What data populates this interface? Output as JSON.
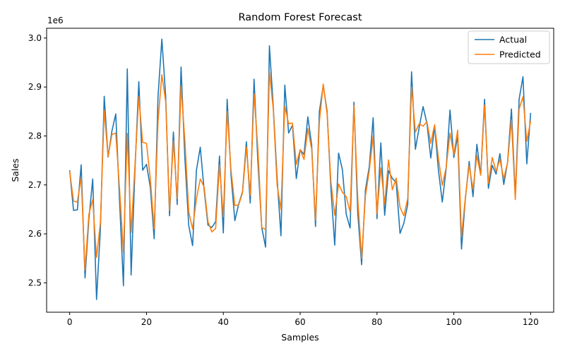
{
  "chart_data": {
    "type": "line",
    "title": "Random Forest Forecast",
    "xlabel": "Samples",
    "ylabel": "Sales",
    "y_offset_label": "1e6",
    "xlim": [
      -6,
      126
    ],
    "ylim": [
      2.44,
      3.02
    ],
    "x_ticks": [
      0,
      20,
      40,
      60,
      80,
      100,
      120
    ],
    "y_ticks": [
      2.5,
      2.6,
      2.7,
      2.8,
      2.9,
      3.0
    ],
    "y_tick_labels": [
      "2.5",
      "2.6",
      "2.7",
      "2.8",
      "2.9",
      "3.0"
    ],
    "grid": false,
    "legend_position": "top-right",
    "x": [
      0,
      1,
      2,
      3,
      4,
      5,
      6,
      7,
      8,
      9,
      10,
      11,
      12,
      13,
      14,
      15,
      16,
      17,
      18,
      19,
      20,
      21,
      22,
      23,
      24,
      25,
      26,
      27,
      28,
      29,
      30,
      31,
      32,
      33,
      34,
      35,
      36,
      37,
      38,
      39,
      40,
      41,
      42,
      43,
      44,
      45,
      46,
      47,
      48,
      49,
      50,
      51,
      52,
      53,
      54,
      55,
      56,
      57,
      58,
      59,
      60,
      61,
      62,
      63,
      64,
      65,
      66,
      67,
      68,
      69,
      70,
      71,
      72,
      73,
      74,
      75,
      76,
      77,
      78,
      79,
      80,
      81,
      82,
      83,
      84,
      85,
      86,
      87,
      88,
      89,
      90,
      91,
      92,
      93,
      94,
      95,
      96,
      97,
      98,
      99,
      100,
      101,
      102,
      103,
      104,
      105,
      106,
      107,
      108,
      109,
      110,
      111,
      112,
      113,
      114,
      115,
      116,
      117,
      118,
      119,
      120
    ],
    "series": [
      {
        "name": "Actual",
        "color": "#1f77b4",
        "values": [
          2.73,
          2.648,
          2.649,
          2.741,
          2.51,
          2.63,
          2.712,
          2.466,
          2.61,
          2.881,
          2.757,
          2.81,
          2.845,
          2.665,
          2.494,
          2.937,
          2.516,
          2.731,
          2.911,
          2.73,
          2.742,
          2.695,
          2.59,
          2.88,
          2.998,
          2.88,
          2.637,
          2.808,
          2.66,
          2.941,
          2.753,
          2.617,
          2.576,
          2.73,
          2.777,
          2.69,
          2.618,
          2.613,
          2.625,
          2.759,
          2.602,
          2.875,
          2.72,
          2.627,
          2.661,
          2.686,
          2.788,
          2.663,
          2.916,
          2.747,
          2.613,
          2.573,
          2.984,
          2.86,
          2.714,
          2.596,
          2.904,
          2.806,
          2.822,
          2.713,
          2.772,
          2.762,
          2.839,
          2.781,
          2.615,
          2.85,
          2.903,
          2.852,
          2.693,
          2.577,
          2.765,
          2.731,
          2.64,
          2.612,
          2.869,
          2.642,
          2.537,
          2.69,
          2.738,
          2.837,
          2.631,
          2.786,
          2.638,
          2.729,
          2.713,
          2.705,
          2.601,
          2.622,
          2.66,
          2.931,
          2.773,
          2.818,
          2.86,
          2.826,
          2.755,
          2.82,
          2.73,
          2.665,
          2.733,
          2.853,
          2.756,
          2.8,
          2.569,
          2.671,
          2.748,
          2.676,
          2.783,
          2.72,
          2.875,
          2.693,
          2.74,
          2.722,
          2.764,
          2.701,
          2.747,
          2.855,
          2.677,
          2.875,
          2.921,
          2.743,
          2.847
        ]
      },
      {
        "name": "Predicted",
        "color": "#ff7f0e",
        "values": [
          2.728,
          2.667,
          2.665,
          2.715,
          2.526,
          2.64,
          2.67,
          2.552,
          2.623,
          2.852,
          2.758,
          2.803,
          2.806,
          2.69,
          2.562,
          2.805,
          2.603,
          2.74,
          2.88,
          2.787,
          2.785,
          2.712,
          2.61,
          2.83,
          2.925,
          2.87,
          2.648,
          2.79,
          2.672,
          2.902,
          2.789,
          2.645,
          2.61,
          2.672,
          2.712,
          2.696,
          2.625,
          2.604,
          2.611,
          2.741,
          2.635,
          2.85,
          2.73,
          2.658,
          2.659,
          2.684,
          2.777,
          2.679,
          2.886,
          2.773,
          2.613,
          2.609,
          2.931,
          2.855,
          2.7,
          2.65,
          2.861,
          2.825,
          2.826,
          2.742,
          2.772,
          2.752,
          2.815,
          2.773,
          2.628,
          2.829,
          2.906,
          2.846,
          2.707,
          2.638,
          2.702,
          2.685,
          2.676,
          2.645,
          2.862,
          2.671,
          2.55,
          2.678,
          2.73,
          2.8,
          2.641,
          2.735,
          2.661,
          2.751,
          2.69,
          2.714,
          2.654,
          2.637,
          2.672,
          2.9,
          2.808,
          2.825,
          2.82,
          2.829,
          2.785,
          2.823,
          2.754,
          2.699,
          2.735,
          2.806,
          2.762,
          2.812,
          2.594,
          2.674,
          2.74,
          2.691,
          2.76,
          2.72,
          2.863,
          2.703,
          2.756,
          2.728,
          2.752,
          2.713,
          2.746,
          2.833,
          2.67,
          2.855,
          2.88,
          2.789,
          2.831
        ]
      }
    ]
  }
}
